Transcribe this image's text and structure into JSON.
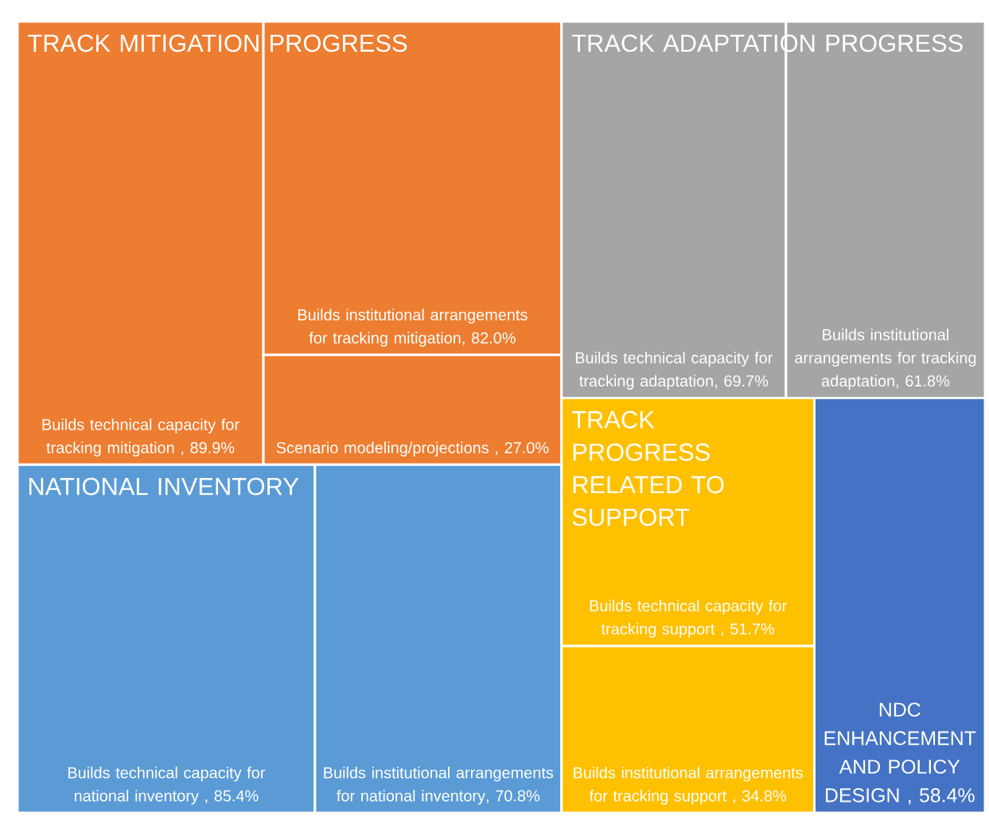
{
  "chart_data": {
    "type": "other",
    "categories": [
      "Builds technical capacity for tracking mitigation ",
      "Builds institutional arrangements for tracking mitigation",
      "Scenario modeling/projections ",
      "Builds technical capacity for national inventory ",
      "Builds institutional arrangements for national inventory",
      "Builds technical capacity for tracking adaptation",
      "Builds institutional arrangements for tracking adaptation",
      "Builds technical capacity for tracking support ",
      "Builds institutional arrangements for tracking support ",
      "NDC ENHANCEMENT AND POLICY DESIGN "
    ],
    "value_labels": [
      ", 89.9%",
      ", 82.0%",
      ", 27.0%",
      ", 85.4%",
      ", 70.8%",
      ", 69.7%",
      ", 61.8%",
      ", 51.7%",
      ", 34.8%",
      ", 58.4%"
    ],
    "values": [
      89.9,
      82.0,
      27.0,
      85.4,
      70.8,
      69.7,
      61.8,
      51.7,
      34.8,
      58.4
    ],
    "colors": [
      "#ed7d31",
      "#ed7d31",
      "#ed7d31",
      "#5b9bd5",
      "#5b9bd5",
      "#a5a5a5",
      "#a5a5a5",
      "#ffc000",
      "#ffc000",
      "#4472c4"
    ],
    "annotations": [
      "TRACK MITIGATION PROGRESS",
      "NATIONAL INVENTORY",
      "TRACK ADAPTATION PROGRESS",
      "TRACK PROGRESS RELATED TO SUPPORT"
    ]
  }
}
